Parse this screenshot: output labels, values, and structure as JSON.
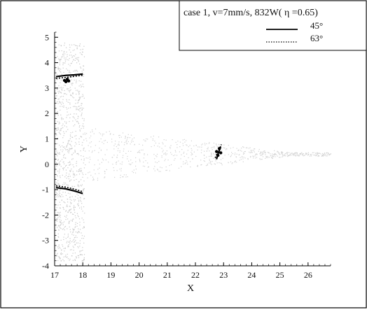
{
  "chart_data": {
    "type": "line",
    "title": "",
    "xlabel": "X",
    "ylabel": "Y",
    "xlim": [
      17,
      26.8
    ],
    "ylim": [
      -4,
      5.2
    ],
    "x_ticks": [
      17,
      18,
      19,
      20,
      21,
      22,
      23,
      24,
      25,
      26
    ],
    "y_ticks": [
      5,
      4,
      3,
      2,
      1,
      0,
      -1,
      -2,
      -3,
      -4
    ],
    "grid": false,
    "legend": {
      "placement": "top-right",
      "header": "case 1, v=7mm/s, 832W( η =0.65)",
      "entries": [
        {
          "name": "45°",
          "style": "solid"
        },
        {
          "name": "63°",
          "style": "dotted"
        }
      ]
    },
    "series": [
      {
        "name": "45°",
        "style": "solid",
        "color": "#000000",
        "segments": [
          [
            [
              17.05,
              3.45
            ],
            [
              17.4,
              3.5
            ],
            [
              17.7,
              3.52
            ],
            [
              18.0,
              3.55
            ]
          ],
          [
            [
              17.05,
              -0.92
            ],
            [
              17.4,
              -0.97
            ],
            [
              17.7,
              -1.05
            ],
            [
              18.0,
              -1.15
            ]
          ],
          [
            [
              22.75,
              0.2
            ],
            [
              22.8,
              0.4
            ],
            [
              22.85,
              0.55
            ],
            [
              22.9,
              0.7
            ]
          ]
        ]
      },
      {
        "name": "63°",
        "style": "dotted",
        "color": "#000000",
        "segments": [
          [
            [
              17.05,
              3.38
            ],
            [
              17.4,
              3.42
            ],
            [
              17.7,
              3.46
            ],
            [
              18.0,
              3.5
            ]
          ],
          [
            [
              17.05,
              -0.85
            ],
            [
              17.4,
              -0.9
            ],
            [
              17.7,
              -0.98
            ],
            [
              18.0,
              -1.08
            ]
          ],
          [
            [
              22.7,
              0.25
            ],
            [
              22.78,
              0.45
            ],
            [
              22.85,
              0.6
            ],
            [
              22.92,
              0.78
            ]
          ]
        ]
      }
    ],
    "markers": [
      {
        "name": "cluster-upper",
        "x": [
          17.35,
          17.4,
          17.45,
          17.5
        ],
        "y": [
          3.3,
          3.25,
          3.35,
          3.28
        ]
      },
      {
        "name": "cluster-right",
        "x": [
          22.75,
          22.8,
          22.85,
          22.9
        ],
        "y": [
          0.5,
          0.35,
          0.62,
          0.45
        ]
      }
    ]
  }
}
